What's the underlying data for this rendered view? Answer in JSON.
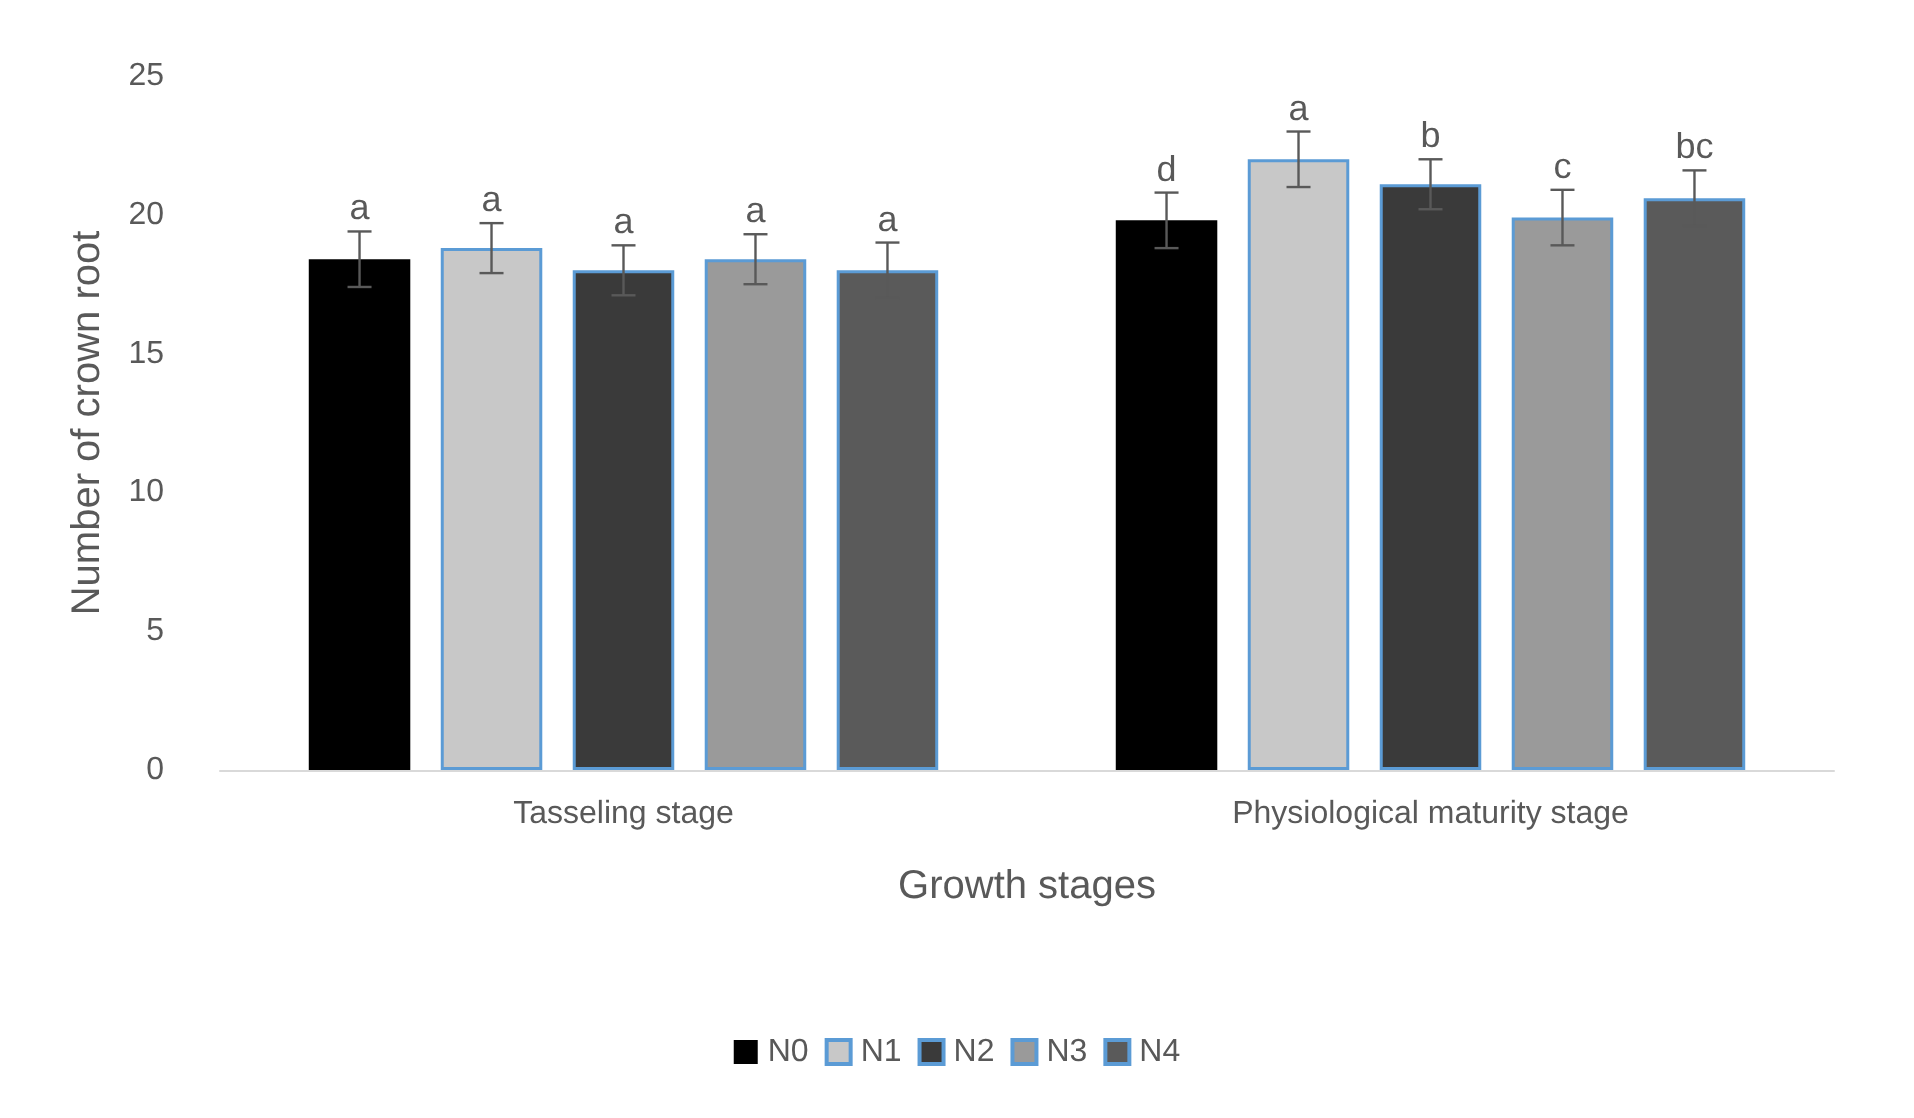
{
  "chart_data": {
    "type": "bar",
    "xlabel": "Growth stages",
    "ylabel": "Number of crown root",
    "categories": [
      "Tasseling stage",
      "Physiological maturity stage"
    ],
    "ylim": [
      0,
      25
    ],
    "yticks": [
      0,
      5,
      10,
      15,
      20,
      25
    ],
    "grid": false,
    "legend": "bottom",
    "series": [
      {
        "name": "N0",
        "color": "#000000",
        "values": [
          18.4,
          19.8
        ],
        "errors": [
          1.0,
          1.0
        ],
        "value_labels": [
          "a",
          "d"
        ]
      },
      {
        "name": "N1",
        "color": "#c8c8c8",
        "values": [
          18.8,
          22.0
        ],
        "errors": [
          0.9,
          1.0
        ],
        "value_labels": [
          "a",
          "a"
        ]
      },
      {
        "name": "N2",
        "color": "#3a3a3a",
        "values": [
          18.0,
          21.1
        ],
        "errors": [
          0.9,
          0.9
        ],
        "value_labels": [
          "a",
          "b"
        ]
      },
      {
        "name": "N3",
        "color": "#9a9a9a",
        "values": [
          18.4,
          19.9
        ],
        "errors": [
          0.9,
          1.0
        ],
        "value_labels": [
          "a",
          "c"
        ]
      },
      {
        "name": "N4",
        "color": "#5a5a5a",
        "values": [
          18.0,
          20.6
        ],
        "errors": [
          1.0,
          1.0
        ],
        "value_labels": [
          "a",
          "bc"
        ]
      }
    ]
  }
}
